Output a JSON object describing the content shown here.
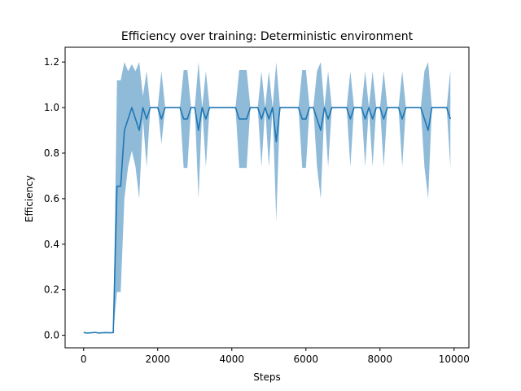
{
  "chart_data": {
    "type": "line",
    "title": "Efficiency over training: Deterministic environment",
    "xlabel": "Steps",
    "ylabel": "Efficiency",
    "xlim": [
      -500,
      10400
    ],
    "ylim": [
      -0.055,
      1.265
    ],
    "xticks": [
      0,
      2000,
      4000,
      6000,
      8000,
      10000
    ],
    "xtick_labels": [
      "0",
      "2000",
      "4000",
      "6000",
      "8000",
      "10000"
    ],
    "yticks": [
      0.0,
      0.2,
      0.4,
      0.6,
      0.8,
      1.0,
      1.2
    ],
    "ytick_labels": [
      "0.0",
      "0.2",
      "0.4",
      "0.6",
      "0.8",
      "1.0",
      "1.2"
    ],
    "grid": false,
    "legend": "none",
    "colors": {
      "line": "#1f77b4",
      "band": "#1f77b4",
      "band_opacity": 0.5
    },
    "series": [
      {
        "x": [
          0,
          100,
          200,
          300,
          400,
          500,
          600,
          700,
          800,
          900,
          1000,
          1100,
          1200,
          1300,
          1400,
          1500,
          1600,
          1700,
          1800,
          1900,
          2000,
          2100,
          2200,
          2300,
          2400,
          2500,
          2600,
          2700,
          2800,
          2900,
          3000,
          3100,
          3200,
          3300,
          3400,
          3500,
          3600,
          3700,
          3800,
          3900,
          4000,
          4100,
          4200,
          4300,
          4400,
          4500,
          4600,
          4700,
          4800,
          4900,
          5000,
          5100,
          5200,
          5300,
          5400,
          5500,
          5600,
          5700,
          5800,
          5900,
          6000,
          6100,
          6200,
          6300,
          6400,
          6500,
          6600,
          6700,
          6800,
          6900,
          7000,
          7100,
          7200,
          7300,
          7400,
          7500,
          7600,
          7700,
          7800,
          7900,
          8000,
          8100,
          8200,
          8300,
          8400,
          8500,
          8600,
          8700,
          8800,
          8900,
          9000,
          9100,
          9200,
          9300,
          9400,
          9500,
          9600,
          9700,
          9800,
          9900
        ],
        "y": [
          0.012,
          0.01,
          0.011,
          0.013,
          0.01,
          0.011,
          0.012,
          0.011,
          0.012,
          0.655,
          0.655,
          0.9,
          0.95,
          1.0,
          0.95,
          0.9,
          1.0,
          0.95,
          1.0,
          1.0,
          1.0,
          0.95,
          1.0,
          1.0,
          1.0,
          1.0,
          1.0,
          0.95,
          0.95,
          1.0,
          1.0,
          0.9,
          1.0,
          0.95,
          1.0,
          1.0,
          1.0,
          1.0,
          1.0,
          1.0,
          1.0,
          1.0,
          0.95,
          0.95,
          0.95,
          1.0,
          1.0,
          1.0,
          0.95,
          1.0,
          0.95,
          1.0,
          0.85,
          1.0,
          1.0,
          1.0,
          1.0,
          1.0,
          1.0,
          0.95,
          0.95,
          1.0,
          1.0,
          0.95,
          0.9,
          1.0,
          0.95,
          1.0,
          1.0,
          1.0,
          1.0,
          1.0,
          0.95,
          1.0,
          1.0,
          1.0,
          0.95,
          1.0,
          0.95,
          1.0,
          1.0,
          0.95,
          1.0,
          1.0,
          1.0,
          1.0,
          0.95,
          1.0,
          1.0,
          1.0,
          1.0,
          1.0,
          0.95,
          0.9,
          1.0,
          1.0,
          1.0,
          1.0,
          1.0,
          0.95
        ],
        "lower": [
          0.012,
          0.01,
          0.011,
          0.013,
          0.01,
          0.011,
          0.012,
          0.011,
          0.012,
          0.19,
          0.19,
          0.6,
          0.74,
          0.81,
          0.74,
          0.6,
          0.95,
          0.74,
          1.0,
          1.0,
          1.0,
          0.84,
          1.0,
          1.0,
          1.0,
          1.0,
          1.0,
          0.735,
          0.735,
          1.0,
          1.0,
          0.6,
          1.0,
          0.74,
          1.0,
          1.0,
          1.0,
          1.0,
          1.0,
          1.0,
          1.0,
          1.0,
          0.735,
          0.735,
          0.735,
          1.0,
          1.0,
          1.0,
          0.74,
          1.0,
          0.74,
          1.0,
          0.5,
          1.0,
          1.0,
          1.0,
          1.0,
          1.0,
          1.0,
          0.735,
          0.735,
          1.0,
          1.0,
          0.74,
          0.6,
          1.0,
          0.74,
          1.0,
          1.0,
          1.0,
          1.0,
          1.0,
          0.74,
          1.0,
          1.0,
          1.0,
          0.74,
          1.0,
          0.74,
          1.0,
          1.0,
          0.74,
          1.0,
          1.0,
          1.0,
          1.0,
          0.74,
          1.0,
          1.0,
          1.0,
          1.0,
          1.0,
          0.74,
          0.6,
          1.0,
          1.0,
          1.0,
          1.0,
          1.0,
          0.735
        ],
        "upper": [
          0.012,
          0.01,
          0.011,
          0.013,
          0.01,
          0.011,
          0.012,
          0.011,
          0.012,
          1.12,
          1.12,
          1.2,
          1.16,
          1.19,
          1.16,
          1.2,
          1.05,
          1.16,
          1.0,
          1.0,
          1.0,
          1.16,
          1.0,
          1.0,
          1.0,
          1.0,
          1.0,
          1.165,
          1.165,
          1.0,
          1.0,
          1.2,
          1.0,
          1.16,
          1.0,
          1.0,
          1.0,
          1.0,
          1.0,
          1.0,
          1.0,
          1.0,
          1.165,
          1.165,
          1.165,
          1.0,
          1.0,
          1.0,
          1.16,
          1.0,
          1.16,
          1.0,
          1.2,
          1.0,
          1.0,
          1.0,
          1.0,
          1.0,
          1.0,
          1.165,
          1.165,
          1.0,
          1.0,
          1.16,
          1.2,
          1.0,
          1.16,
          1.0,
          1.0,
          1.0,
          1.0,
          1.0,
          1.16,
          1.0,
          1.0,
          1.0,
          1.16,
          1.0,
          1.16,
          1.0,
          1.0,
          1.16,
          1.0,
          1.0,
          1.0,
          1.0,
          1.16,
          1.0,
          1.0,
          1.0,
          1.0,
          1.0,
          1.16,
          1.2,
          1.0,
          1.0,
          1.0,
          1.0,
          1.0,
          1.165
        ]
      }
    ]
  }
}
